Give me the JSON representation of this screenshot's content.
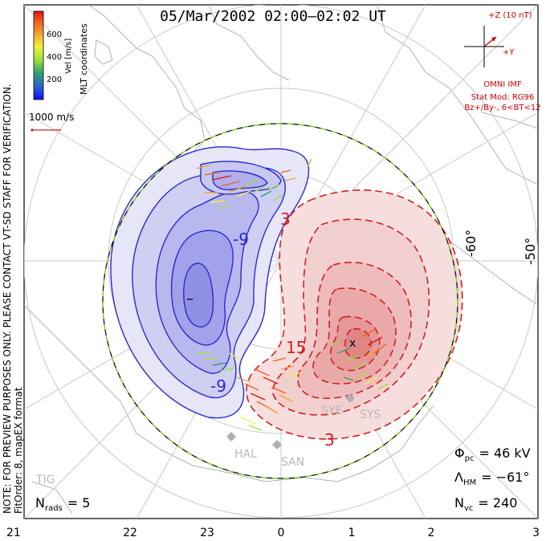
{
  "title": "05/Mar/2002 02:00–02:02 UT",
  "side_note": {
    "line1": "NOTE: FOR PREVIEW PURPOSES ONLY. PLEASE CONTACT VT-SD STAFF FOR VERIFICATION.",
    "line2": "FitOrder: 8, mapEX format"
  },
  "coord_label": "MLT coordinates",
  "colorbar": {
    "label": "Vel [m/s]",
    "ticks": [
      "600",
      "400",
      "200"
    ],
    "colors": [
      "#1010f0",
      "#2f5fd0",
      "#2fa070",
      "#a0e040",
      "#f0f040",
      "#f0a030",
      "#f06020",
      "#e01010"
    ]
  },
  "scale_vector": {
    "label": "1000 m/s",
    "color": "#d02020"
  },
  "imf": {
    "z_label": "+Z (10 nT)",
    "y_label": "+Y",
    "source": "OMNI IMF",
    "model_line1": "Stat Mod: RG96",
    "model_line2": "Bz+/By-, 6<BT<12",
    "color": "#cc0000"
  },
  "lat_labels": [
    "-60°",
    "-50°"
  ],
  "potential_labels": [
    "-9",
    "-9",
    "3",
    "15",
    "3"
  ],
  "extrema_markers": [
    "–",
    "x"
  ],
  "stations": [
    "HAL",
    "SAN",
    "SYE",
    "SYS",
    "TIG"
  ],
  "stats": {
    "nrads_label": "N",
    "nrads_sub": "rads",
    "nrads_value": "= 5",
    "phi_label": "Φ",
    "phi_sub": "pc",
    "phi_value": "= 46 kV",
    "lambda_label": "Λ",
    "lambda_sub": "HM",
    "lambda_value": "= −61°",
    "nvc_label": "N",
    "nvc_sub": "vc",
    "nvc_value": "= 240"
  },
  "mlt_axis": [
    "21",
    "22",
    "23",
    "0",
    "1",
    "2",
    "3"
  ],
  "colors": {
    "negative_cell": "#2a2ad0",
    "positive_cell": "#d02020",
    "heppner_boundary": "#90d040"
  }
}
